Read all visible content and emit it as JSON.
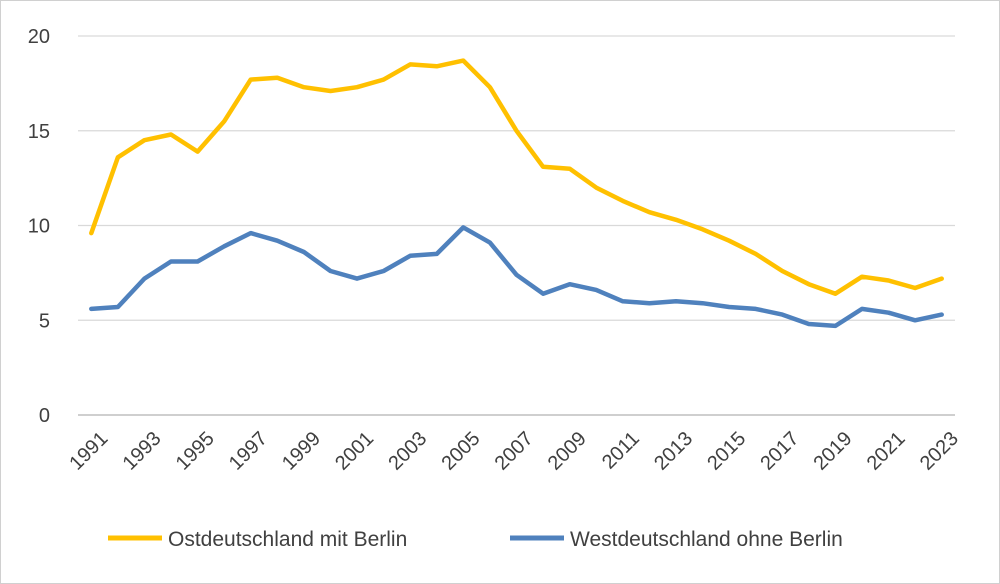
{
  "chart_data": {
    "type": "line",
    "title": "",
    "xlabel": "",
    "ylabel": "",
    "x": [
      1991,
      1992,
      1993,
      1994,
      1995,
      1996,
      1997,
      1998,
      1999,
      2000,
      2001,
      2002,
      2003,
      2004,
      2005,
      2006,
      2007,
      2008,
      2009,
      2010,
      2011,
      2012,
      2013,
      2014,
      2015,
      2016,
      2017,
      2018,
      2019,
      2020,
      2021,
      2022,
      2023
    ],
    "x_tick_labels": [
      "1991",
      "1993",
      "1995",
      "1997",
      "1999",
      "2001",
      "2003",
      "2005",
      "2007",
      "2009",
      "2011",
      "2013",
      "2015",
      "2017",
      "2019",
      "2021",
      "2023"
    ],
    "y_tick_labels": [
      "0",
      "5",
      "10",
      "15",
      "20"
    ],
    "ylim": [
      0,
      20
    ],
    "grid": "horizontal",
    "legend_position": "bottom",
    "series": [
      {
        "name": "Ostdeutschland mit Berlin",
        "color": "#FFC000",
        "values": [
          9.6,
          13.6,
          14.5,
          14.8,
          13.9,
          15.5,
          17.7,
          17.8,
          17.3,
          17.1,
          17.3,
          17.7,
          18.5,
          18.4,
          18.7,
          17.3,
          15.0,
          13.1,
          13.0,
          12.0,
          11.3,
          10.7,
          10.3,
          9.8,
          9.2,
          8.5,
          7.6,
          6.9,
          6.4,
          7.3,
          7.1,
          6.7,
          7.2
        ]
      },
      {
        "name": "Westdeutschland ohne Berlin",
        "color": "#4F81BD",
        "values": [
          5.6,
          5.7,
          7.2,
          8.1,
          8.1,
          8.9,
          9.6,
          9.2,
          8.6,
          7.6,
          7.2,
          7.6,
          8.4,
          8.5,
          9.9,
          9.1,
          7.4,
          6.4,
          6.9,
          6.6,
          6.0,
          5.9,
          6.0,
          5.9,
          5.7,
          5.6,
          5.3,
          4.8,
          4.7,
          5.6,
          5.4,
          5.0,
          5.3
        ]
      }
    ]
  }
}
